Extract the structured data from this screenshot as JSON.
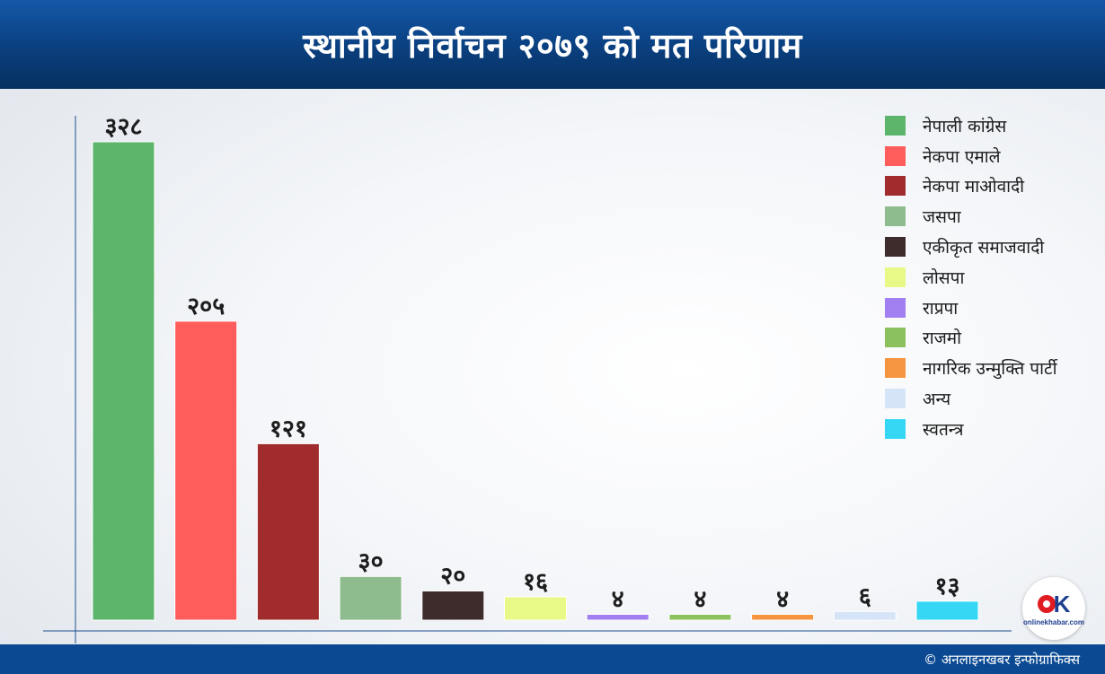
{
  "header": {
    "title": "स्थानीय निर्वाचन २०७९ को मत परिणाम"
  },
  "chart_data": {
    "type": "bar",
    "title": "स्थानीय निर्वाचन २०७९ को मत परिणाम",
    "categories": [
      "नेपाली कांग्रेस",
      "नेकपा एमाले",
      "नेकपा माओवादी",
      "जसपा",
      "एकीकृत समाजवादी",
      "लोसपा",
      "राप्रपा",
      "राजमो",
      "नागरिक उन्मुक्ति पार्टी",
      "अन्य",
      "स्वतन्त्र"
    ],
    "values": [
      328,
      205,
      121,
      30,
      20,
      16,
      4,
      4,
      4,
      6,
      13
    ],
    "value_labels": [
      "३२८",
      "२०५",
      "१२१",
      "३०",
      "२०",
      "१६",
      "४",
      "४",
      "४",
      "६",
      "१३"
    ],
    "colors": [
      "#5cb56b",
      "#ff5c5c",
      "#a02c2d",
      "#8fbc8f",
      "#3e2c2c",
      "#e8f987",
      "#a17ff0",
      "#8bc25e",
      "#f6953f",
      "#d6e4f7",
      "#36d7f5"
    ],
    "ylim": [
      0,
      328
    ],
    "grid": false,
    "legend_position": "top-right"
  },
  "footer": {
    "credit": "© अनलाइनखबर इन्फोग्राफिक्स"
  },
  "logo": {
    "text": "onlinekhabar.com"
  }
}
